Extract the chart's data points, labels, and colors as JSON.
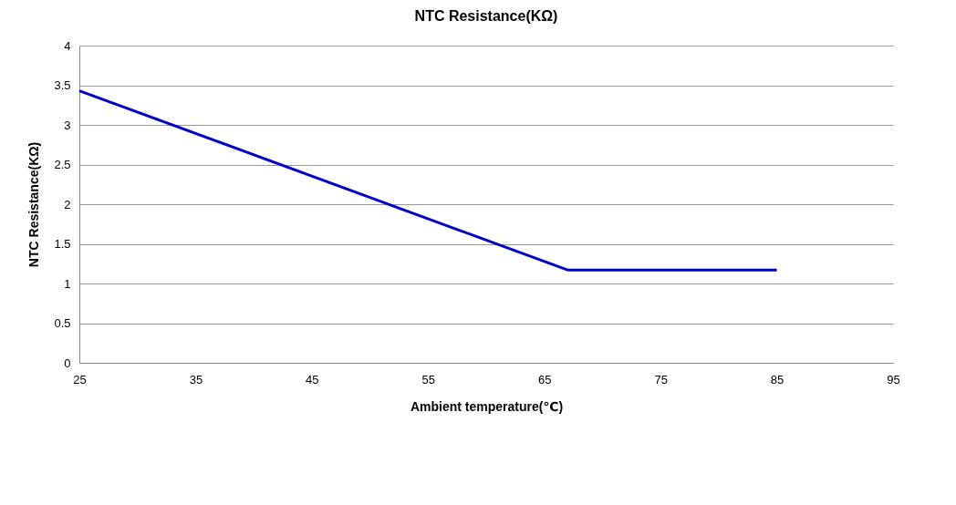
{
  "chart_data": {
    "type": "line",
    "title": "NTC Resistance(KΩ)",
    "xlabel": "Ambient temperature(℃)",
    "ylabel": "NTC Resistance(KΩ)",
    "x": [
      25,
      67,
      85
    ],
    "series": [
      {
        "color": "#0000cc",
        "values": [
          3.43,
          1.17,
          1.17
        ]
      }
    ],
    "xlim": [
      25,
      95
    ],
    "xticks": [
      25,
      35,
      45,
      55,
      65,
      75,
      85,
      95
    ],
    "ylim": [
      0,
      4
    ],
    "yticks": [
      0,
      0.5,
      1,
      1.5,
      2,
      2.5,
      3,
      3.5,
      4
    ],
    "grid": "y",
    "legend": false,
    "marker": "none",
    "line_style": "solid"
  }
}
